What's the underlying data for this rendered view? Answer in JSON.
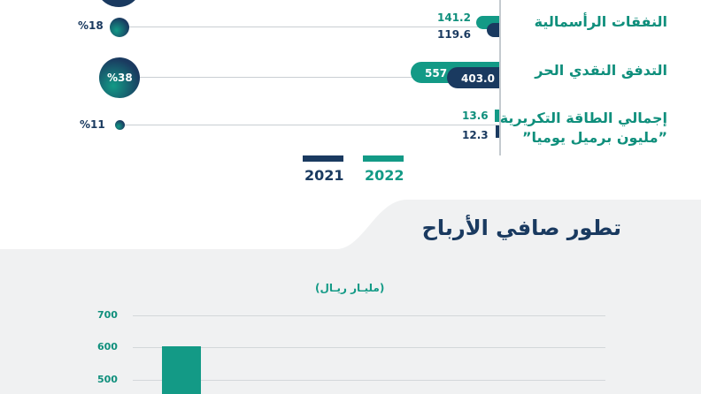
{
  "top_chart": {
    "rows": [
      {
        "label": "النفقات الرأسمالية",
        "v2022": "141.2",
        "v2021": "119.6",
        "pct": "%18"
      },
      {
        "label": "التدفق النقدي الحر",
        "v2022": "557",
        "v2021": "403.0",
        "pct": "%38"
      },
      {
        "label_line1": "إجمالي الطاقة التكريرية",
        "label_line2": "”مليون برميل يوميا”",
        "v2022": "13.6",
        "v2021": "12.3",
        "pct": "%11"
      }
    ],
    "legend": {
      "y2021": "2021",
      "y2022": "2022"
    },
    "colors": {
      "c2022": "#139a86",
      "c2021": "#1a3a60"
    }
  },
  "bottom": {
    "title": "تطور صافي الأرباح",
    "unit": "(مليـار ريـال)"
  },
  "chart_data": {
    "type": "bar",
    "title": "تطور صافي الأرباح",
    "ylabel": "(مليـار ريـال)",
    "yticks": [
      "700",
      "600",
      "500"
    ],
    "ylim": [
      0,
      700
    ],
    "values": [
      604
    ],
    "colors": [
      "#139a86"
    ]
  }
}
